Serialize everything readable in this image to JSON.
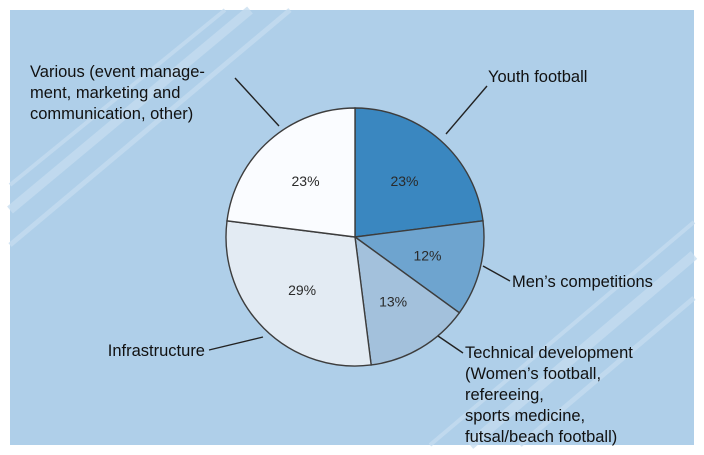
{
  "chart_data": {
    "type": "pie",
    "title": "",
    "start_angle_deg": 0,
    "direction": "clockwise",
    "slices": [
      {
        "label": "Youth football",
        "value": 23,
        "value_label": "23%",
        "color": "#3a87c0",
        "label_lines": [
          "Youth football"
        ]
      },
      {
        "label": "Men's competitions",
        "value": 12,
        "value_label": "12%",
        "color": "#6ea4cf",
        "label_lines": [
          "Men’s competitions"
        ]
      },
      {
        "label": "Technical development (Women's football, refereeing, sports medicine, futsal/beach football)",
        "value": 13,
        "value_label": "13%",
        "color": "#a3c1dc",
        "label_lines": [
          "Technical development",
          "(Women’s football,",
          "refereeing,",
          "sports medicine,",
          "futsal/beach football)"
        ]
      },
      {
        "label": "Infrastructure",
        "value": 29,
        "value_label": "29%",
        "color": "#e3ebf3",
        "label_lines": [
          "Infrastructure"
        ]
      },
      {
        "label": "Various (event management, marketing and communication, other)",
        "value": 23,
        "value_label": "23%",
        "color": "#fafcff",
        "label_lines": [
          "Various (event manage-",
          "ment, marketing and",
          "communication, other)"
        ]
      }
    ]
  },
  "colors": {
    "background": "#afcfe9",
    "stripe": "#c6dcef",
    "frame": "#ffffff"
  }
}
